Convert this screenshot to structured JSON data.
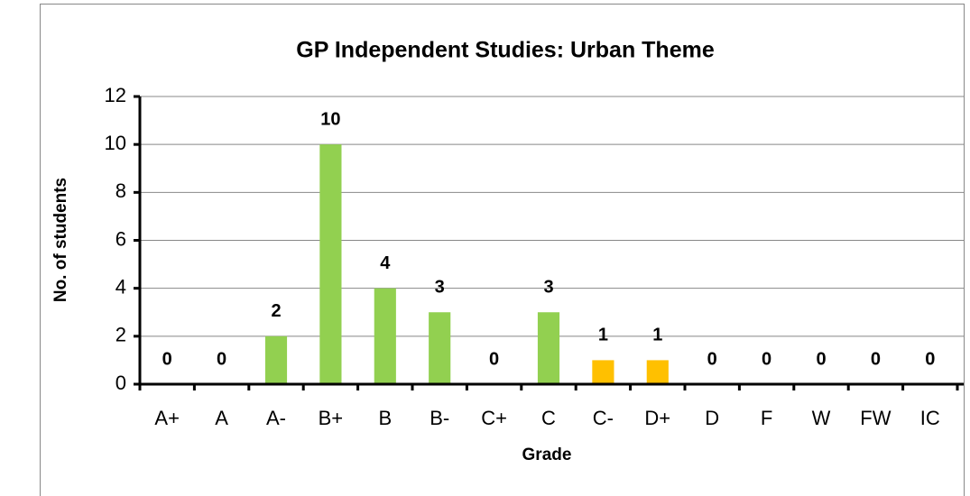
{
  "chart_data": {
    "type": "bar",
    "title": "GP Independent Studies: Urban Theme",
    "x_label": "Grade",
    "y_label": "No. of students",
    "categories": [
      "A+",
      "A",
      "A-",
      "B+",
      "B",
      "B-",
      "C+",
      "C",
      "C-",
      "D+",
      "D",
      "F",
      "W",
      "FW",
      "IC"
    ],
    "values": [
      0,
      0,
      2,
      10,
      4,
      3,
      0,
      3,
      1,
      1,
      0,
      0,
      0,
      0,
      0
    ],
    "colors": [
      "#92d050",
      "#92d050",
      "#92d050",
      "#92d050",
      "#92d050",
      "#92d050",
      "#92d050",
      "#92d050",
      "#ffc000",
      "#ffc000",
      "#92d050",
      "#92d050",
      "#92d050",
      "#92d050",
      "#92d050"
    ],
    "ylim": [
      0,
      12
    ],
    "yticks": [
      0,
      2,
      4,
      6,
      8,
      10,
      12
    ],
    "grid": true
  }
}
